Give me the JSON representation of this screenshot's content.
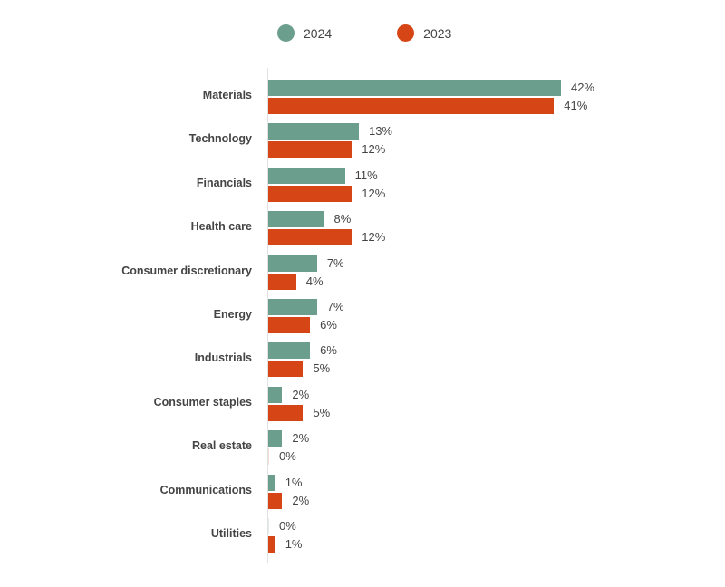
{
  "legend": [
    {
      "label": "2024",
      "color": "#6b9e8d"
    },
    {
      "label": "2023",
      "color": "#d64515"
    }
  ],
  "chart_data": {
    "type": "bar",
    "orientation": "horizontal",
    "title": "",
    "xlabel": "",
    "ylabel": "",
    "legend_position": "top",
    "grid": false,
    "categories": [
      "Materials",
      "Technology",
      "Financials",
      "Health care",
      "Consumer discretionary",
      "Energy",
      "Industrials",
      "Consumer staples",
      "Real estate",
      "Communications",
      "Utilities"
    ],
    "series": [
      {
        "name": "2024",
        "color": "#6b9e8d",
        "values": [
          42,
          13,
          11,
          8,
          7,
          7,
          6,
          2,
          2,
          1,
          0
        ],
        "labels": [
          "42%",
          "13%",
          "11%",
          "8%",
          "7%",
          "7%",
          "6%",
          "2%",
          "2%",
          "1%",
          "0%"
        ]
      },
      {
        "name": "2023",
        "color": "#d64515",
        "values": [
          41,
          12,
          12,
          12,
          4,
          6,
          5,
          5,
          0,
          2,
          1
        ],
        "labels": [
          "41%",
          "12%",
          "12%",
          "12%",
          "4%",
          "6%",
          "5%",
          "5%",
          "0%",
          "2%",
          "1%"
        ]
      }
    ],
    "unit": "%"
  }
}
